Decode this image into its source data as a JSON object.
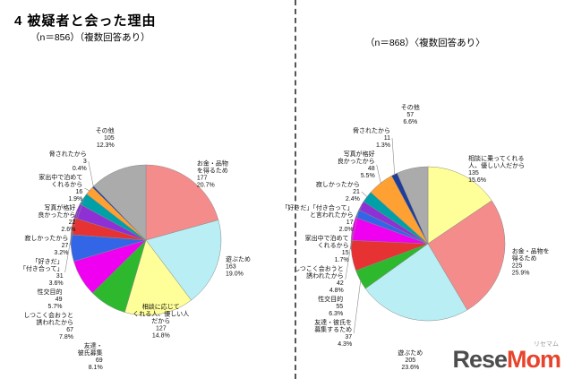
{
  "page": {
    "title": "4 被疑者と会った理由",
    "left_subtitle": "（n＝856）（複数回答あり）",
    "right_subtitle": "（n＝868）〈複数回答あり〉"
  },
  "logo": {
    "part1": "Rese",
    "part2": "Mom",
    "ruby": "リセマム",
    "part1_color": "#4d4d4d",
    "part2_color": "#e8432c"
  },
  "chart_data": [
    {
      "type": "pie",
      "id": "left",
      "title": "（n＝856）（複数回答あり）",
      "n": 856,
      "legend_position": "outside-labels",
      "slices": [
        {
          "label": "お金・品物を得るため",
          "label_lines": [
            "お金・品物",
            "を得るため"
          ],
          "value": 177,
          "pct": "20.7%",
          "color": "#F48C8C"
        },
        {
          "label": "遊ぶため",
          "label_lines": [
            "遊ぶため"
          ],
          "value": 163,
          "pct": "19.0%",
          "color": "#B8EEF4"
        },
        {
          "label": "相談に応じてくれる人、優しい人だから",
          "label_lines": [
            "相談に応じて",
            "くれる人、優しい人",
            "だから"
          ],
          "value": 127,
          "pct": "14.8%",
          "color": "#FFFF99"
        },
        {
          "label": "友達・彼氏募集",
          "label_lines": [
            "友達・",
            "彼氏募集"
          ],
          "value": 69,
          "pct": "8.1%",
          "color": "#2EB82E"
        },
        {
          "label": "しつこく会おうと誘われたから",
          "label_lines": [
            "しつこく会おうと",
            "誘われたから"
          ],
          "value": 67,
          "pct": "7.8%",
          "color": "#F000F0"
        },
        {
          "label": "性交目的",
          "label_lines": [
            "性交目的"
          ],
          "value": 49,
          "pct": "5.7%",
          "color": "#3366E6"
        },
        {
          "label": "「好きだ」「付き合って」と言われたから",
          "label_lines": [
            "「好きだ」",
            "「付き合って」"
          ],
          "value": 31,
          "pct": "3.6%",
          "color": "#E63232"
        },
        {
          "label": "寂しかったから",
          "label_lines": [
            "寂しかったから"
          ],
          "value": 27,
          "pct": "3.2%",
          "color": "#8F2FD6"
        },
        {
          "label": "写真が格好良かったから",
          "label_lines": [
            "写真が格好",
            "良かったから"
          ],
          "value": 22,
          "pct": "2.6%",
          "color": "#00A0A8"
        },
        {
          "label": "家出中で泊めてくれるから",
          "label_lines": [
            "家出中で泊めて",
            "くれるから"
          ],
          "value": 16,
          "pct": "1.9%",
          "color": "#FFA033"
        },
        {
          "label": "脅されたから",
          "label_lines": [
            "脅されたから"
          ],
          "value": 3,
          "pct": "0.4%",
          "color": "#1F3D99"
        },
        {
          "label": "その他",
          "label_lines": [
            "その他"
          ],
          "value": 105,
          "pct": "12.3%",
          "color": "#ABABAB"
        }
      ]
    },
    {
      "type": "pie",
      "id": "right",
      "title": "（n＝868）〈複数回答あり〉",
      "n": 868,
      "legend_position": "outside-labels",
      "slices": [
        {
          "label": "相談に乗ってくれる人、優しい人だから",
          "label_lines": [
            "相談に乗ってくれる",
            "人、優しい人だから"
          ],
          "value": 135,
          "pct": "15.6%",
          "color": "#FFFF99"
        },
        {
          "label": "お金・品物を得るため",
          "label_lines": [
            "お金・品物を",
            "得るため"
          ],
          "value": 225,
          "pct": "25.9%",
          "color": "#F48C8C"
        },
        {
          "label": "遊ぶため",
          "label_lines": [
            "遊ぶため"
          ],
          "value": 205,
          "pct": "23.6%",
          "color": "#B8EEF4"
        },
        {
          "label": "友達・彼氏を募集するため",
          "label_lines": [
            "友達・彼氏を",
            "募集するため"
          ],
          "value": 37,
          "pct": "4.3%",
          "color": "#2EB82E"
        },
        {
          "label": "性交目的",
          "label_lines": [
            "性交目的"
          ],
          "value": 55,
          "pct": "6.3%",
          "color": "#E63232"
        },
        {
          "label": "しつこく会おうと誘われたから",
          "label_lines": [
            "しつこく会おうと",
            "誘われたから"
          ],
          "value": 42,
          "pct": "4.8%",
          "color": "#F000F0"
        },
        {
          "label": "家出中で泊めてくれるから",
          "label_lines": [
            "家出中で泊めて",
            "くれるから"
          ],
          "value": 15,
          "pct": "1.7%",
          "color": "#3366E6"
        },
        {
          "label": "「好きだ」「付き合って」と言われたから",
          "label_lines": [
            "「好きだ」「付き合って」",
            "と言われたから"
          ],
          "value": 17,
          "pct": "2.0%",
          "color": "#8F2FD6"
        },
        {
          "label": "寂しかったから",
          "label_lines": [
            "寂しかったから"
          ],
          "value": 21,
          "pct": "2.4%",
          "color": "#00A0A8"
        },
        {
          "label": "写真が格好良かったから",
          "label_lines": [
            "写真が格好",
            "良かったから"
          ],
          "value": 48,
          "pct": "5.5%",
          "color": "#FFA033"
        },
        {
          "label": "脅されたから",
          "label_lines": [
            "脅されたから"
          ],
          "value": 11,
          "pct": "1.3%",
          "color": "#1F3D99"
        },
        {
          "label": "その他",
          "label_lines": [
            "その他"
          ],
          "value": 57,
          "pct": "6.6%",
          "color": "#ABABAB"
        }
      ]
    }
  ]
}
